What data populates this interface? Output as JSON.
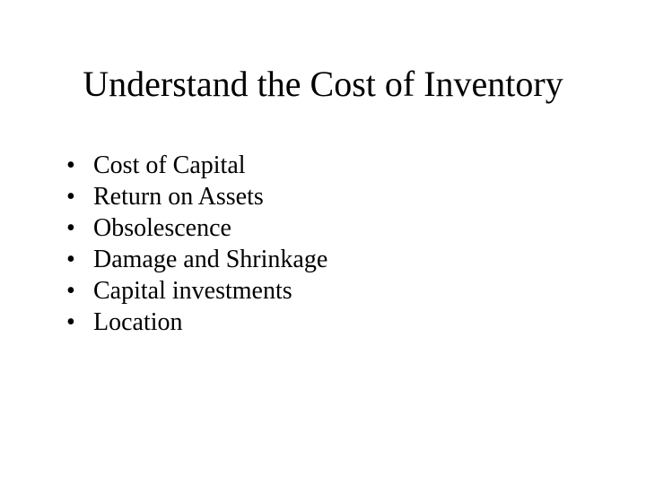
{
  "slide": {
    "title": "Understand the Cost of Inventory",
    "title_fontsize": 40,
    "title_color": "#000000",
    "body_fontsize": 28,
    "body_color": "#000000",
    "background_color": "#ffffff",
    "font_family": "Times New Roman",
    "bullet_char": "•",
    "bullets": [
      "Cost of Capital",
      "Return on Assets",
      "Obsolescence",
      "Damage and Shrinkage",
      "Capital investments",
      "Location"
    ]
  }
}
